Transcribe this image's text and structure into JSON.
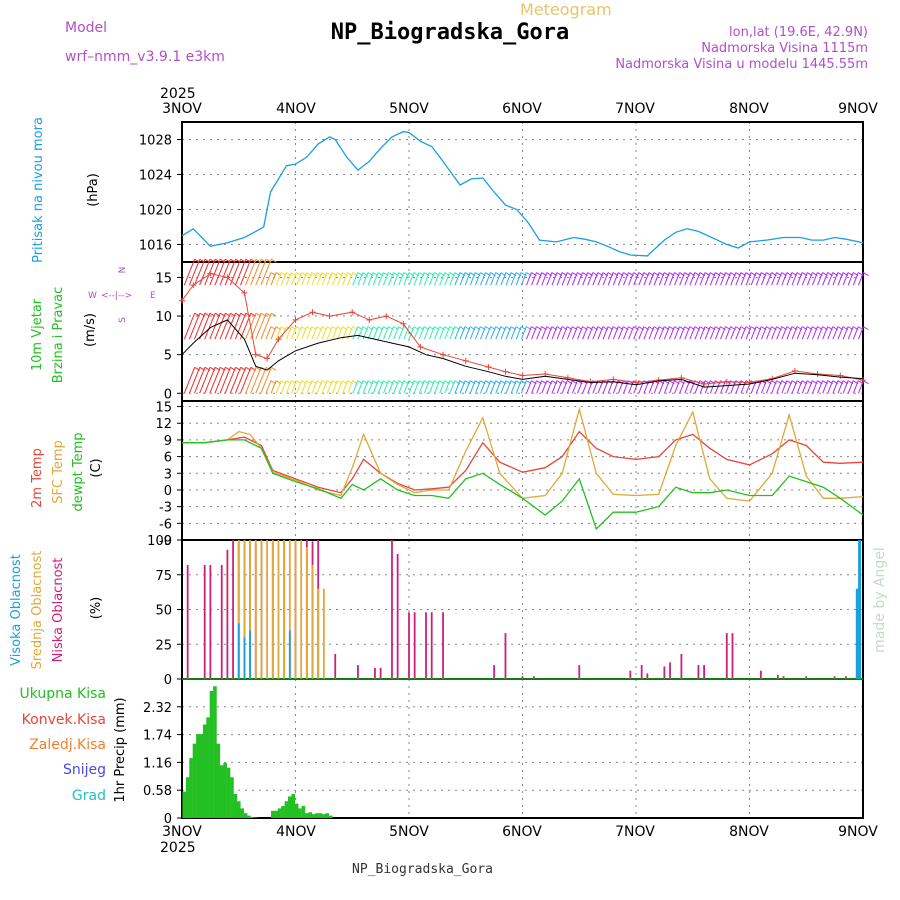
{
  "header": {
    "title": "NP_Biogradska_Gora",
    "meteogram": "Meteogram",
    "model_label": "Model",
    "model_name": "wrf–nmm_v3.9.1  e3km",
    "lonlat": "lon,lat (19.6E, 42.9N)",
    "altitude": "Nadmorska Visina 1115m",
    "model_altitude": "Nadmorska Visina u modelu 1445.55m",
    "watermark": "made by Angel"
  },
  "footer": {
    "location": "NP_Biogradska_Gora"
  },
  "colors": {
    "pressure": "#1a9fe0",
    "temp2m": "#e8463c",
    "sfc": "#e0a838",
    "dewpt": "#22c022",
    "high_cloud": "#1a9fe0",
    "mid_cloud": "#e0a838",
    "low_cloud": "#cc1f7a",
    "precip": "#22c022",
    "wind_label": "#22c022",
    "grid": "#888888"
  },
  "chart_data": [
    {
      "type": "line",
      "panel": "pressure",
      "title": "Pritisak na nivou mora",
      "ylabel": "(hPa)",
      "ylim": [
        1014,
        1030
      ],
      "yticks": [
        "1016",
        "1020",
        "1024",
        "1028"
      ],
      "xticks_top": [
        "3NOV",
        "4NOV",
        "5NOV",
        "6NOV",
        "7NOV",
        "8NOV",
        "9NOV"
      ],
      "year": "2025",
      "x": [
        0,
        0.1,
        0.25,
        0.4,
        0.55,
        0.65,
        0.72,
        0.78,
        0.85,
        0.92,
        1.0,
        1.1,
        1.2,
        1.3,
        1.35,
        1.45,
        1.55,
        1.65,
        1.75,
        1.85,
        1.95,
        2.0,
        2.1,
        2.2,
        2.3,
        2.45,
        2.55,
        2.65,
        2.75,
        2.85,
        2.95,
        3.05,
        3.15,
        3.3,
        3.45,
        3.55,
        3.65,
        3.75,
        3.85,
        3.95,
        4.1,
        4.25,
        4.35,
        4.45,
        4.55,
        4.6,
        4.7,
        4.8,
        4.9,
        5.0,
        5.15,
        5.3,
        5.45,
        5.55,
        5.65,
        5.75,
        5.85,
        6.0
      ],
      "values": [
        1017,
        1017.8,
        1015.8,
        1016.2,
        1016.8,
        1017.5,
        1018,
        1022,
        1023.5,
        1025,
        1025.2,
        1026,
        1027.5,
        1028.3,
        1028,
        1026,
        1024.5,
        1025.5,
        1027,
        1028.3,
        1028.9,
        1028.8,
        1027.8,
        1027.2,
        1025.5,
        1022.8,
        1023.5,
        1023.6,
        1022,
        1020.5,
        1020,
        1018.5,
        1016.5,
        1016.3,
        1016.8,
        1016.6,
        1016.3,
        1015.8,
        1015.2,
        1014.8,
        1014.7,
        1016.5,
        1017.4,
        1017.8,
        1017.5,
        1017.2,
        1016.6,
        1016,
        1015.6,
        1016.3,
        1016.5,
        1016.8,
        1016.8,
        1016.5,
        1016.5,
        1016.8,
        1016.6,
        1016.2
      ]
    },
    {
      "type": "line",
      "panel": "wind",
      "title": "10m Vjetar",
      "title2": "Brzina i Pravac",
      "ylabel": "(m/s)",
      "ylim": [
        -1,
        17
      ],
      "yticks": [
        "0",
        "5",
        "10",
        "15"
      ],
      "compass": {
        "n": "N",
        "e": "E",
        "w": "W",
        "s": "S"
      },
      "series": [
        {
          "name": "speed",
          "color": "#000000",
          "x": [
            0,
            0.1,
            0.25,
            0.4,
            0.55,
            0.65,
            0.75,
            0.85,
            1.0,
            1.2,
            1.4,
            1.55,
            1.7,
            1.85,
            2.0,
            2.15,
            2.3,
            2.5,
            2.7,
            2.85,
            3.0,
            3.2,
            3.4,
            3.6,
            3.8,
            4.0,
            4.2,
            4.4,
            4.6,
            4.8,
            5.0,
            5.2,
            5.4,
            5.6,
            5.8,
            6.0
          ],
          "values": [
            5,
            6.5,
            8.5,
            9.5,
            7,
            3.5,
            3,
            4.2,
            5.5,
            6.5,
            7.2,
            7.5,
            7,
            6.5,
            6,
            5,
            4.5,
            3.5,
            2.8,
            2.2,
            1.8,
            2.2,
            1.8,
            1.4,
            1.5,
            1.1,
            1.6,
            1.8,
            0.8,
            1,
            1.2,
            1.8,
            2.6,
            2.4,
            2.1,
            1.9
          ]
        },
        {
          "name": "gust",
          "color": "#e8463c",
          "x": [
            0,
            0.1,
            0.25,
            0.4,
            0.55,
            0.65,
            0.75,
            0.85,
            1.0,
            1.15,
            1.3,
            1.5,
            1.65,
            1.8,
            1.95,
            2.1,
            2.3,
            2.5,
            2.7,
            2.85,
            3.0,
            3.2,
            3.4,
            3.6,
            3.8,
            4.0,
            4.2,
            4.4,
            4.6,
            4.8,
            5.0,
            5.2,
            5.4,
            5.6,
            5.8,
            6.0
          ],
          "values": [
            12,
            14,
            15.5,
            15,
            13,
            5,
            4.5,
            7,
            9.5,
            10.5,
            10,
            10.5,
            9.5,
            10,
            9,
            6,
            5,
            4.2,
            3.4,
            2.8,
            2.3,
            2.5,
            2,
            1.5,
            1.8,
            1.4,
            1.7,
            2,
            1.2,
            1.5,
            1.4,
            1.9,
            2.9,
            2.5,
            2.3,
            1.7
          ]
        }
      ],
      "barb_rows": [
        {
          "y": 0
        },
        {
          "y": 7
        },
        {
          "y": 14
        }
      ]
    },
    {
      "type": "line",
      "panel": "temperature",
      "title": "2m Temp",
      "title2": "SFC Temp",
      "title3": "dewpt Temp",
      "ylabel": "(C)",
      "ylim": [
        -9,
        16
      ],
      "yticks": [
        "-9",
        "-6",
        "-3",
        "0",
        "3",
        "6",
        "9",
        "12",
        "15"
      ],
      "series": [
        {
          "name": "2m Temp",
          "color": "#e8463c",
          "x": [
            0,
            0.2,
            0.4,
            0.55,
            0.7,
            0.8,
            1.0,
            1.2,
            1.4,
            1.5,
            1.6,
            1.75,
            1.9,
            2.05,
            2.2,
            2.35,
            2.5,
            2.65,
            2.8,
            3.0,
            3.2,
            3.35,
            3.5,
            3.65,
            3.8,
            4.0,
            4.2,
            4.35,
            4.5,
            4.65,
            4.8,
            5.0,
            5.2,
            5.35,
            5.5,
            5.65,
            5.8,
            6.0
          ],
          "values": [
            8.5,
            8.5,
            9,
            9.5,
            8,
            3.5,
            2,
            0.5,
            -0.5,
            2,
            5.5,
            3,
            1.2,
            0,
            0.2,
            0.5,
            3.5,
            8.5,
            5,
            3.2,
            4,
            6,
            10.5,
            7.5,
            6,
            5.5,
            6,
            9,
            10,
            7.5,
            5.5,
            4.5,
            6.5,
            9,
            8,
            5,
            4.8,
            5
          ]
        },
        {
          "name": "SFC Temp",
          "color": "#e0a838",
          "x": [
            0,
            0.2,
            0.4,
            0.5,
            0.6,
            0.7,
            0.8,
            1.0,
            1.2,
            1.4,
            1.5,
            1.6,
            1.75,
            1.9,
            2.05,
            2.2,
            2.35,
            2.5,
            2.65,
            2.8,
            3.0,
            3.2,
            3.35,
            3.5,
            3.65,
            3.8,
            4.0,
            4.2,
            4.35,
            4.5,
            4.65,
            4.8,
            5.0,
            5.2,
            5.35,
            5.5,
            5.65,
            5.8,
            6.0
          ],
          "values": [
            8.5,
            8.5,
            9,
            10.5,
            10,
            7.5,
            3.2,
            1.8,
            0,
            -1,
            4,
            10,
            3,
            1,
            -0.5,
            0,
            0,
            7,
            13,
            3,
            -1.5,
            -1,
            3,
            14.5,
            3,
            -0.8,
            -1,
            -0.8,
            8,
            14,
            2,
            -1.5,
            -2,
            3,
            13.5,
            2.5,
            -1.5,
            -1.5,
            -1.2
          ]
        },
        {
          "name": "dewpt Temp",
          "color": "#22c022",
          "x": [
            0,
            0.2,
            0.4,
            0.55,
            0.7,
            0.8,
            1.0,
            1.2,
            1.4,
            1.5,
            1.6,
            1.75,
            1.9,
            2.05,
            2.2,
            2.35,
            2.5,
            2.65,
            2.8,
            3.0,
            3.2,
            3.35,
            3.5,
            3.65,
            3.8,
            4.0,
            4.2,
            4.35,
            4.5,
            4.65,
            4.8,
            5.0,
            5.2,
            5.35,
            5.5,
            5.65,
            5.8,
            6.0
          ],
          "values": [
            8.5,
            8.5,
            9,
            9,
            7.5,
            3,
            1.5,
            0.2,
            -1.5,
            1,
            0,
            2,
            0,
            -1,
            -1,
            -1.5,
            2,
            3,
            1,
            -1.5,
            -4.5,
            -2,
            2,
            -7,
            -4,
            -4,
            -3,
            0.5,
            -0.5,
            -0.5,
            0,
            -1,
            -1,
            2.5,
            1.5,
            0.5,
            -1.5,
            -4.5
          ]
        }
      ]
    },
    {
      "type": "bar",
      "panel": "clouds",
      "title": "Visoka Oblacnost",
      "title2": "Srednja Oblacnost",
      "title3": "Niska Oblacnost",
      "ylabel": "(%)",
      "ylim": [
        0,
        100
      ],
      "yticks": [
        "0",
        "25",
        "50",
        "75",
        "100"
      ],
      "series": [
        {
          "name": "Niska Oblacnost",
          "color": "#cc1f7a",
          "x": [
            0.05,
            0.2,
            0.25,
            0.35,
            0.4,
            0.45,
            0.5,
            0.55,
            0.6,
            0.65,
            0.7,
            0.8,
            0.9,
            1.0,
            1.1,
            1.15,
            1.2,
            1.35,
            1.55,
            1.7,
            1.75,
            1.85,
            1.9,
            2.0,
            2.05,
            2.15,
            2.2,
            2.3,
            2.75,
            2.85,
            3.0,
            3.1,
            3.5,
            3.95,
            4.05,
            4.1,
            4.25,
            4.3,
            4.4,
            4.55,
            4.6,
            4.8,
            4.85,
            5.1,
            5.25,
            5.3,
            5.5,
            5.75,
            5.85,
            5.95
          ],
          "values": [
            82,
            82,
            82,
            82,
            93,
            100,
            100,
            100,
            99,
            97,
            100,
            98,
            99,
            100,
            100,
            99,
            100,
            18,
            10,
            8,
            8,
            100,
            90,
            48,
            48,
            48,
            48,
            48,
            10,
            33,
            2,
            2,
            10,
            6,
            10,
            4,
            9,
            12,
            18,
            10,
            10,
            33,
            33,
            6,
            3,
            2,
            2,
            2,
            2,
            2
          ]
        },
        {
          "name": "Srednja Oblacnost",
          "color": "#e0a838",
          "x": [
            0.5,
            0.55,
            0.6,
            0.65,
            0.7,
            0.75,
            0.8,
            0.85,
            0.9,
            0.95,
            1.0,
            1.05,
            1.1,
            1.15,
            1.2,
            1.25
          ],
          "values": [
            100,
            100,
            100,
            100,
            100,
            100,
            100,
            100,
            100,
            100,
            100,
            100,
            95,
            82,
            65,
            65
          ]
        },
        {
          "name": "Visoka Oblacnost",
          "color": "#1a9fe0",
          "x": [
            0.5,
            0.55,
            0.6,
            0.95,
            5.95,
            5.97
          ],
          "values": [
            40,
            30,
            35,
            35,
            65,
            100
          ]
        }
      ]
    },
    {
      "type": "bar",
      "panel": "precip",
      "ylabel": "1hr Precip (mm)",
      "ylim": [
        0,
        2.9
      ],
      "yticks": [
        "0",
        "0.58",
        "1.16",
        "1.74",
        "2.32"
      ],
      "legend": [
        "Ukupna Kisa",
        "Konvek.Kisa",
        "Zaledj.Kisa",
        "Snijeg",
        "Grad"
      ],
      "legend_colors": [
        "#22c022",
        "#e8463c",
        "#f08030",
        "#4848e8",
        "#22c0c0"
      ],
      "xticks_bottom": [
        "3NOV",
        "4NOV",
        "5NOV",
        "6NOV",
        "7NOV",
        "8NOV",
        "9NOV"
      ],
      "year": "2025",
      "series": [
        {
          "name": "Ukupna Kisa",
          "color": "#22c022",
          "x": [
            0.02,
            0.05,
            0.08,
            0.11,
            0.14,
            0.17,
            0.2,
            0.23,
            0.26,
            0.29,
            0.32,
            0.35,
            0.38,
            0.41,
            0.44,
            0.47,
            0.5,
            0.53,
            0.56,
            0.59,
            0.62,
            0.65,
            0.68,
            0.71,
            0.74,
            0.77,
            0.8,
            0.83,
            0.86,
            0.89,
            0.92,
            0.95,
            0.98,
            1.01,
            1.04,
            1.07,
            1.1,
            1.13,
            1.16,
            1.19,
            1.22,
            1.25,
            1.28,
            1.31
          ],
          "values": [
            0.55,
            0.85,
            1.25,
            1.55,
            1.75,
            1.75,
            1.95,
            2.1,
            2.65,
            2.75,
            1.55,
            1.1,
            1.15,
            1.05,
            0.85,
            0.5,
            0.35,
            0.2,
            0.1,
            0.05,
            0.02,
            0.01,
            0,
            0,
            0,
            0,
            0.15,
            0.15,
            0.2,
            0.25,
            0.35,
            0.45,
            0.5,
            0.3,
            0.2,
            0.25,
            0.1,
            0.12,
            0.08,
            0.1,
            0.1,
            0.08,
            0.1,
            0.05
          ]
        }
      ]
    }
  ]
}
